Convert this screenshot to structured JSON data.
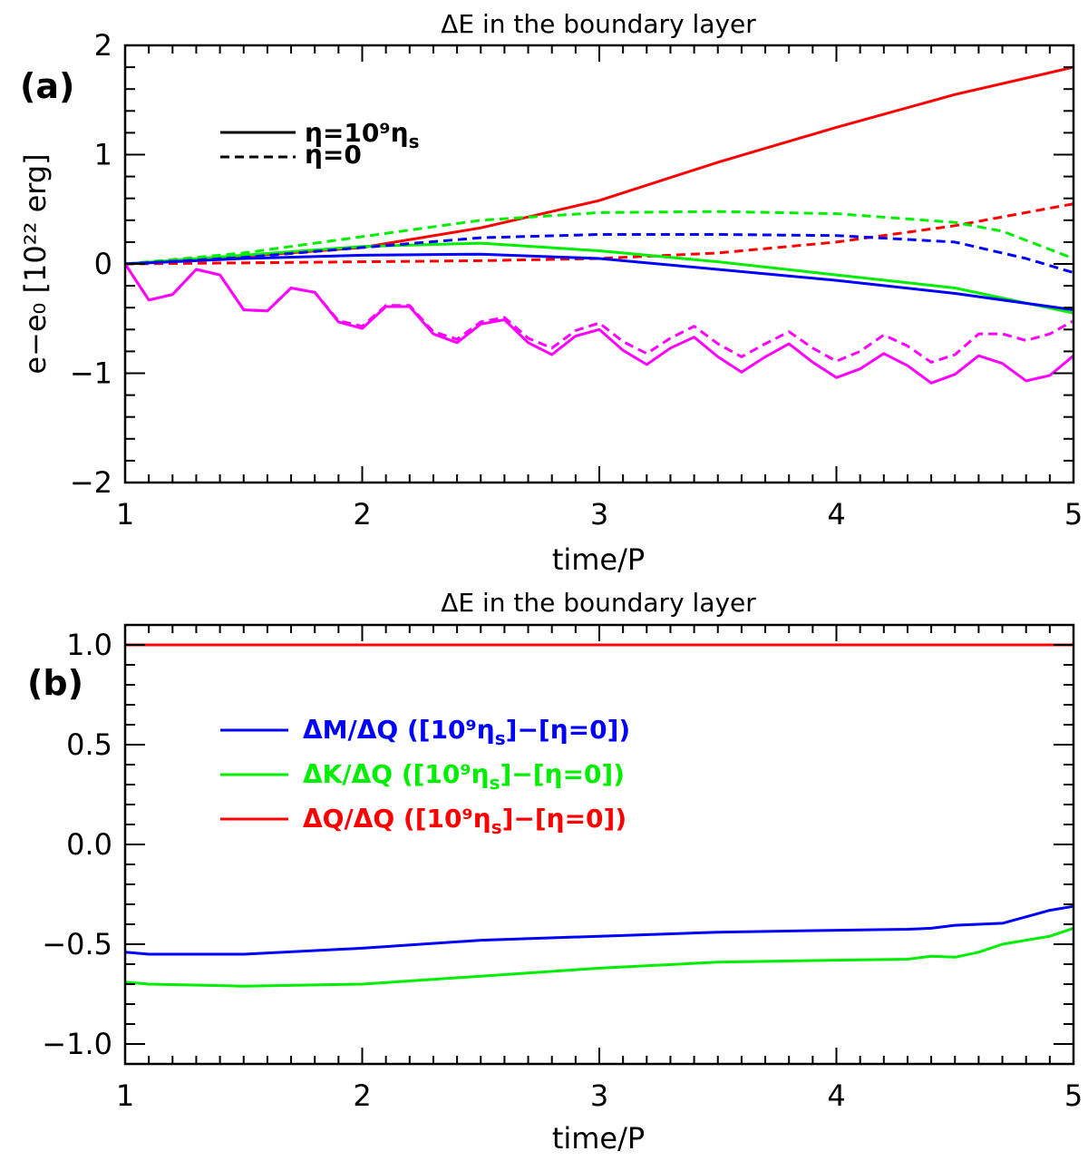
{
  "chart_data": [
    {
      "type": "line",
      "panel_label": "(a)",
      "title": "ΔE in the boundary layer",
      "xlabel": "time/P",
      "ylabel": "e−e₀ [10²² erg]",
      "xlim": [
        1,
        5
      ],
      "ylim": [
        -2,
        2
      ],
      "xticks": [
        "1",
        "2",
        "3",
        "4",
        "5"
      ],
      "xtick_values": [
        1,
        2,
        3,
        4,
        5
      ],
      "yticks": [
        "−2",
        "−1",
        "0",
        "1",
        "2"
      ],
      "ytick_values": [
        -2,
        -1,
        0,
        1,
        2
      ],
      "legend": [
        {
          "label": "η=10⁹η",
          "sub": "s",
          "style": "solid",
          "color": "#000000"
        },
        {
          "label": "η=0",
          "sub": "",
          "style": "dashed",
          "color": "#000000"
        }
      ],
      "series": [
        {
          "name": "red η=10⁹ηs",
          "color": "#ff0000",
          "style": "solid",
          "x": [
            1,
            1.5,
            2,
            2.5,
            3,
            3.5,
            4,
            4.5,
            5
          ],
          "y": [
            0,
            0.07,
            0.15,
            0.33,
            0.58,
            0.93,
            1.25,
            1.55,
            1.8
          ]
        },
        {
          "name": "red η=0",
          "color": "#ff0000",
          "style": "dashed",
          "x": [
            1,
            2,
            2.5,
            3,
            3.5,
            4,
            4.5,
            5
          ],
          "y": [
            0,
            0.02,
            0.03,
            0.05,
            0.1,
            0.2,
            0.35,
            0.55
          ]
        },
        {
          "name": "green η=10⁹ηs",
          "color": "#00ee00",
          "style": "solid",
          "x": [
            1,
            1.5,
            2,
            2.5,
            3,
            3.5,
            4,
            4.5,
            5
          ],
          "y": [
            0,
            0.08,
            0.16,
            0.19,
            0.12,
            0.02,
            -0.1,
            -0.22,
            -0.45
          ]
        },
        {
          "name": "green η=0",
          "color": "#00ee00",
          "style": "dashed",
          "x": [
            1,
            1.5,
            2,
            2.5,
            3,
            3.5,
            4,
            4.5,
            4.7,
            5
          ],
          "y": [
            0,
            0.1,
            0.25,
            0.4,
            0.47,
            0.48,
            0.46,
            0.38,
            0.3,
            0.05
          ]
        },
        {
          "name": "blue η=10⁹ηs",
          "color": "#0000ff",
          "style": "solid",
          "x": [
            1,
            1.5,
            2,
            2.5,
            3,
            3.5,
            4,
            4.5,
            5
          ],
          "y": [
            0,
            0.05,
            0.08,
            0.09,
            0.05,
            -0.05,
            -0.15,
            -0.27,
            -0.42
          ]
        },
        {
          "name": "blue η=0",
          "color": "#0000ff",
          "style": "dashed",
          "x": [
            1,
            1.5,
            2,
            2.5,
            3,
            3.5,
            4,
            4.5,
            4.8,
            5
          ],
          "y": [
            0,
            0.06,
            0.15,
            0.24,
            0.27,
            0.27,
            0.26,
            0.2,
            0.05,
            -0.08
          ]
        },
        {
          "name": "magenta η=10⁹ηs",
          "color": "#ff00ff",
          "style": "solid",
          "x": [
            1,
            1.1,
            1.2,
            1.3,
            1.4,
            1.5,
            1.6,
            1.7,
            1.8,
            1.9,
            2.0,
            2.1,
            2.2,
            2.3,
            2.4,
            2.5,
            2.6,
            2.7,
            2.8,
            2.9,
            3.0,
            3.1,
            3.2,
            3.3,
            3.4,
            3.5,
            3.6,
            3.7,
            3.8,
            3.9,
            4.0,
            4.1,
            4.2,
            4.3,
            4.4,
            4.5,
            4.6,
            4.7,
            4.8,
            4.9,
            5.0
          ],
          "y": [
            0,
            -0.33,
            -0.28,
            -0.05,
            -0.1,
            -0.42,
            -0.43,
            -0.22,
            -0.26,
            -0.53,
            -0.59,
            -0.39,
            -0.39,
            -0.64,
            -0.72,
            -0.55,
            -0.51,
            -0.72,
            -0.83,
            -0.66,
            -0.6,
            -0.79,
            -0.92,
            -0.77,
            -0.67,
            -0.85,
            -0.99,
            -0.85,
            -0.73,
            -0.9,
            -1.04,
            -0.96,
            -0.82,
            -0.93,
            -1.09,
            -1.01,
            -0.84,
            -0.91,
            -1.07,
            -1.02,
            -0.84
          ]
        },
        {
          "name": "magenta η=0",
          "color": "#ff00ff",
          "style": "dashed",
          "x": [
            1,
            1.1,
            1.2,
            1.3,
            1.4,
            1.5,
            1.6,
            1.7,
            1.8,
            1.9,
            2.0,
            2.1,
            2.2,
            2.3,
            2.4,
            2.5,
            2.6,
            2.7,
            2.8,
            2.9,
            3.0,
            3.1,
            3.2,
            3.3,
            3.4,
            3.5,
            3.6,
            3.7,
            3.8,
            3.9,
            4.0,
            4.1,
            4.2,
            4.3,
            4.4,
            4.5,
            4.6,
            4.7,
            4.8,
            4.9,
            5.0
          ],
          "y": [
            0,
            -0.33,
            -0.28,
            -0.05,
            -0.1,
            -0.42,
            -0.43,
            -0.22,
            -0.26,
            -0.52,
            -0.57,
            -0.38,
            -0.38,
            -0.62,
            -0.69,
            -0.53,
            -0.49,
            -0.68,
            -0.77,
            -0.61,
            -0.54,
            -0.71,
            -0.82,
            -0.68,
            -0.57,
            -0.73,
            -0.85,
            -0.73,
            -0.62,
            -0.77,
            -0.89,
            -0.8,
            -0.65,
            -0.75,
            -0.9,
            -0.83,
            -0.64,
            -0.64,
            -0.7,
            -0.64,
            -0.52
          ]
        }
      ]
    },
    {
      "type": "line",
      "panel_label": "(b)",
      "title": "ΔE in the boundary layer",
      "xlabel": "time/P",
      "ylabel": "",
      "xlim": [
        1,
        5
      ],
      "ylim": [
        -1.1,
        1.1
      ],
      "xticks": [
        "1",
        "2",
        "3",
        "4",
        "5"
      ],
      "xtick_values": [
        1,
        2,
        3,
        4,
        5
      ],
      "yticks": [
        "−1.0",
        "−0.5",
        "0.0",
        "0.5",
        "1.0"
      ],
      "ytick_values": [
        -1.0,
        -0.5,
        0.0,
        0.5,
        1.0
      ],
      "legend": [
        {
          "label": "ΔM/ΔQ ([10⁹η",
          "sub": "s",
          "tail": "]−[η=0])",
          "style": "solid",
          "color": "#0000ff"
        },
        {
          "label": "ΔK/ΔQ ([10⁹η",
          "sub": "s",
          "tail": "]−[η=0])",
          "style": "solid",
          "color": "#00ee00"
        },
        {
          "label": "ΔQ/ΔQ ([10⁹η",
          "sub": "s",
          "tail": "]−[η=0])",
          "style": "solid",
          "color": "#ff0000"
        }
      ],
      "series": [
        {
          "name": "ΔM/ΔQ",
          "color": "#0000ff",
          "style": "solid",
          "x": [
            1,
            1.1,
            1.5,
            2,
            2.5,
            3,
            3.5,
            4,
            4.3,
            4.4,
            4.5,
            4.7,
            4.9,
            5
          ],
          "y": [
            -0.54,
            -0.55,
            -0.55,
            -0.52,
            -0.48,
            -0.46,
            -0.44,
            -0.43,
            -0.425,
            -0.42,
            -0.405,
            -0.395,
            -0.33,
            -0.31
          ]
        },
        {
          "name": "ΔK/ΔQ",
          "color": "#00ee00",
          "style": "solid",
          "x": [
            1,
            1.1,
            1.5,
            2,
            2.5,
            3,
            3.5,
            4,
            4.3,
            4.4,
            4.5,
            4.6,
            4.7,
            4.9,
            5
          ],
          "y": [
            -0.69,
            -0.7,
            -0.71,
            -0.7,
            -0.66,
            -0.62,
            -0.59,
            -0.58,
            -0.575,
            -0.56,
            -0.565,
            -0.54,
            -0.5,
            -0.46,
            -0.42
          ]
        },
        {
          "name": "ΔQ/ΔQ",
          "color": "#ff0000",
          "style": "solid",
          "x": [
            1,
            5
          ],
          "y": [
            1.0,
            1.0
          ]
        }
      ]
    }
  ]
}
